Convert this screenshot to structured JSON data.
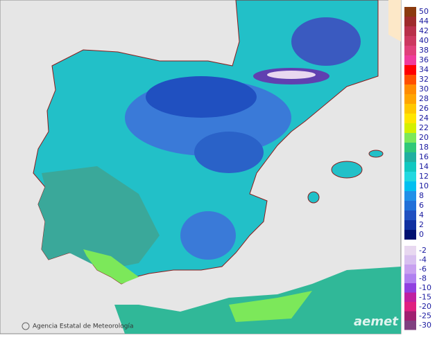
{
  "map": {
    "footer": "Agencia Estatal de Meteorología",
    "logo": "aemet",
    "legend": {
      "warm": [
        {
          "label": "50",
          "color": "#8b3a0e"
        },
        {
          "label": "44",
          "color": "#9e2b2b"
        },
        {
          "label": "42",
          "color": "#b8304a"
        },
        {
          "label": "40",
          "color": "#cc3860"
        },
        {
          "label": "38",
          "color": "#e0407a"
        },
        {
          "label": "36",
          "color": "#f03c9c"
        },
        {
          "label": "34",
          "color": "#ff0000"
        },
        {
          "label": "32",
          "color": "#ff5000"
        },
        {
          "label": "30",
          "color": "#ff8c00"
        },
        {
          "label": "28",
          "color": "#ffa500"
        },
        {
          "label": "26",
          "color": "#ffc800"
        },
        {
          "label": "24",
          "color": "#ffe600"
        },
        {
          "label": "22",
          "color": "#d4f000"
        },
        {
          "label": "20",
          "color": "#7ce85a"
        },
        {
          "label": "18",
          "color": "#30c878"
        },
        {
          "label": "16",
          "color": "#20b0a0"
        },
        {
          "label": "14",
          "color": "#10c8c0"
        },
        {
          "label": "12",
          "color": "#20d8e0"
        },
        {
          "label": "10",
          "color": "#00c0f0"
        },
        {
          "label": "8",
          "color": "#2090e8"
        },
        {
          "label": "6",
          "color": "#2070d8"
        },
        {
          "label": "4",
          "color": "#2050c0"
        },
        {
          "label": "2",
          "color": "#1030a0"
        },
        {
          "label": "0",
          "color": "#001070"
        }
      ],
      "cold": [
        {
          "label": "-2",
          "color": "#e8d8f0"
        },
        {
          "label": "-4",
          "color": "#d8c0f0"
        },
        {
          "label": "-6",
          "color": "#c8a0f0"
        },
        {
          "label": "-8",
          "color": "#b080f0"
        },
        {
          "label": "-10",
          "color": "#9040e0"
        },
        {
          "label": "-15",
          "color": "#c020a0"
        },
        {
          "label": "-20",
          "color": "#e02080"
        },
        {
          "label": "-25",
          "color": "#a02070"
        },
        {
          "label": "-30",
          "color": "#804080"
        }
      ]
    }
  }
}
